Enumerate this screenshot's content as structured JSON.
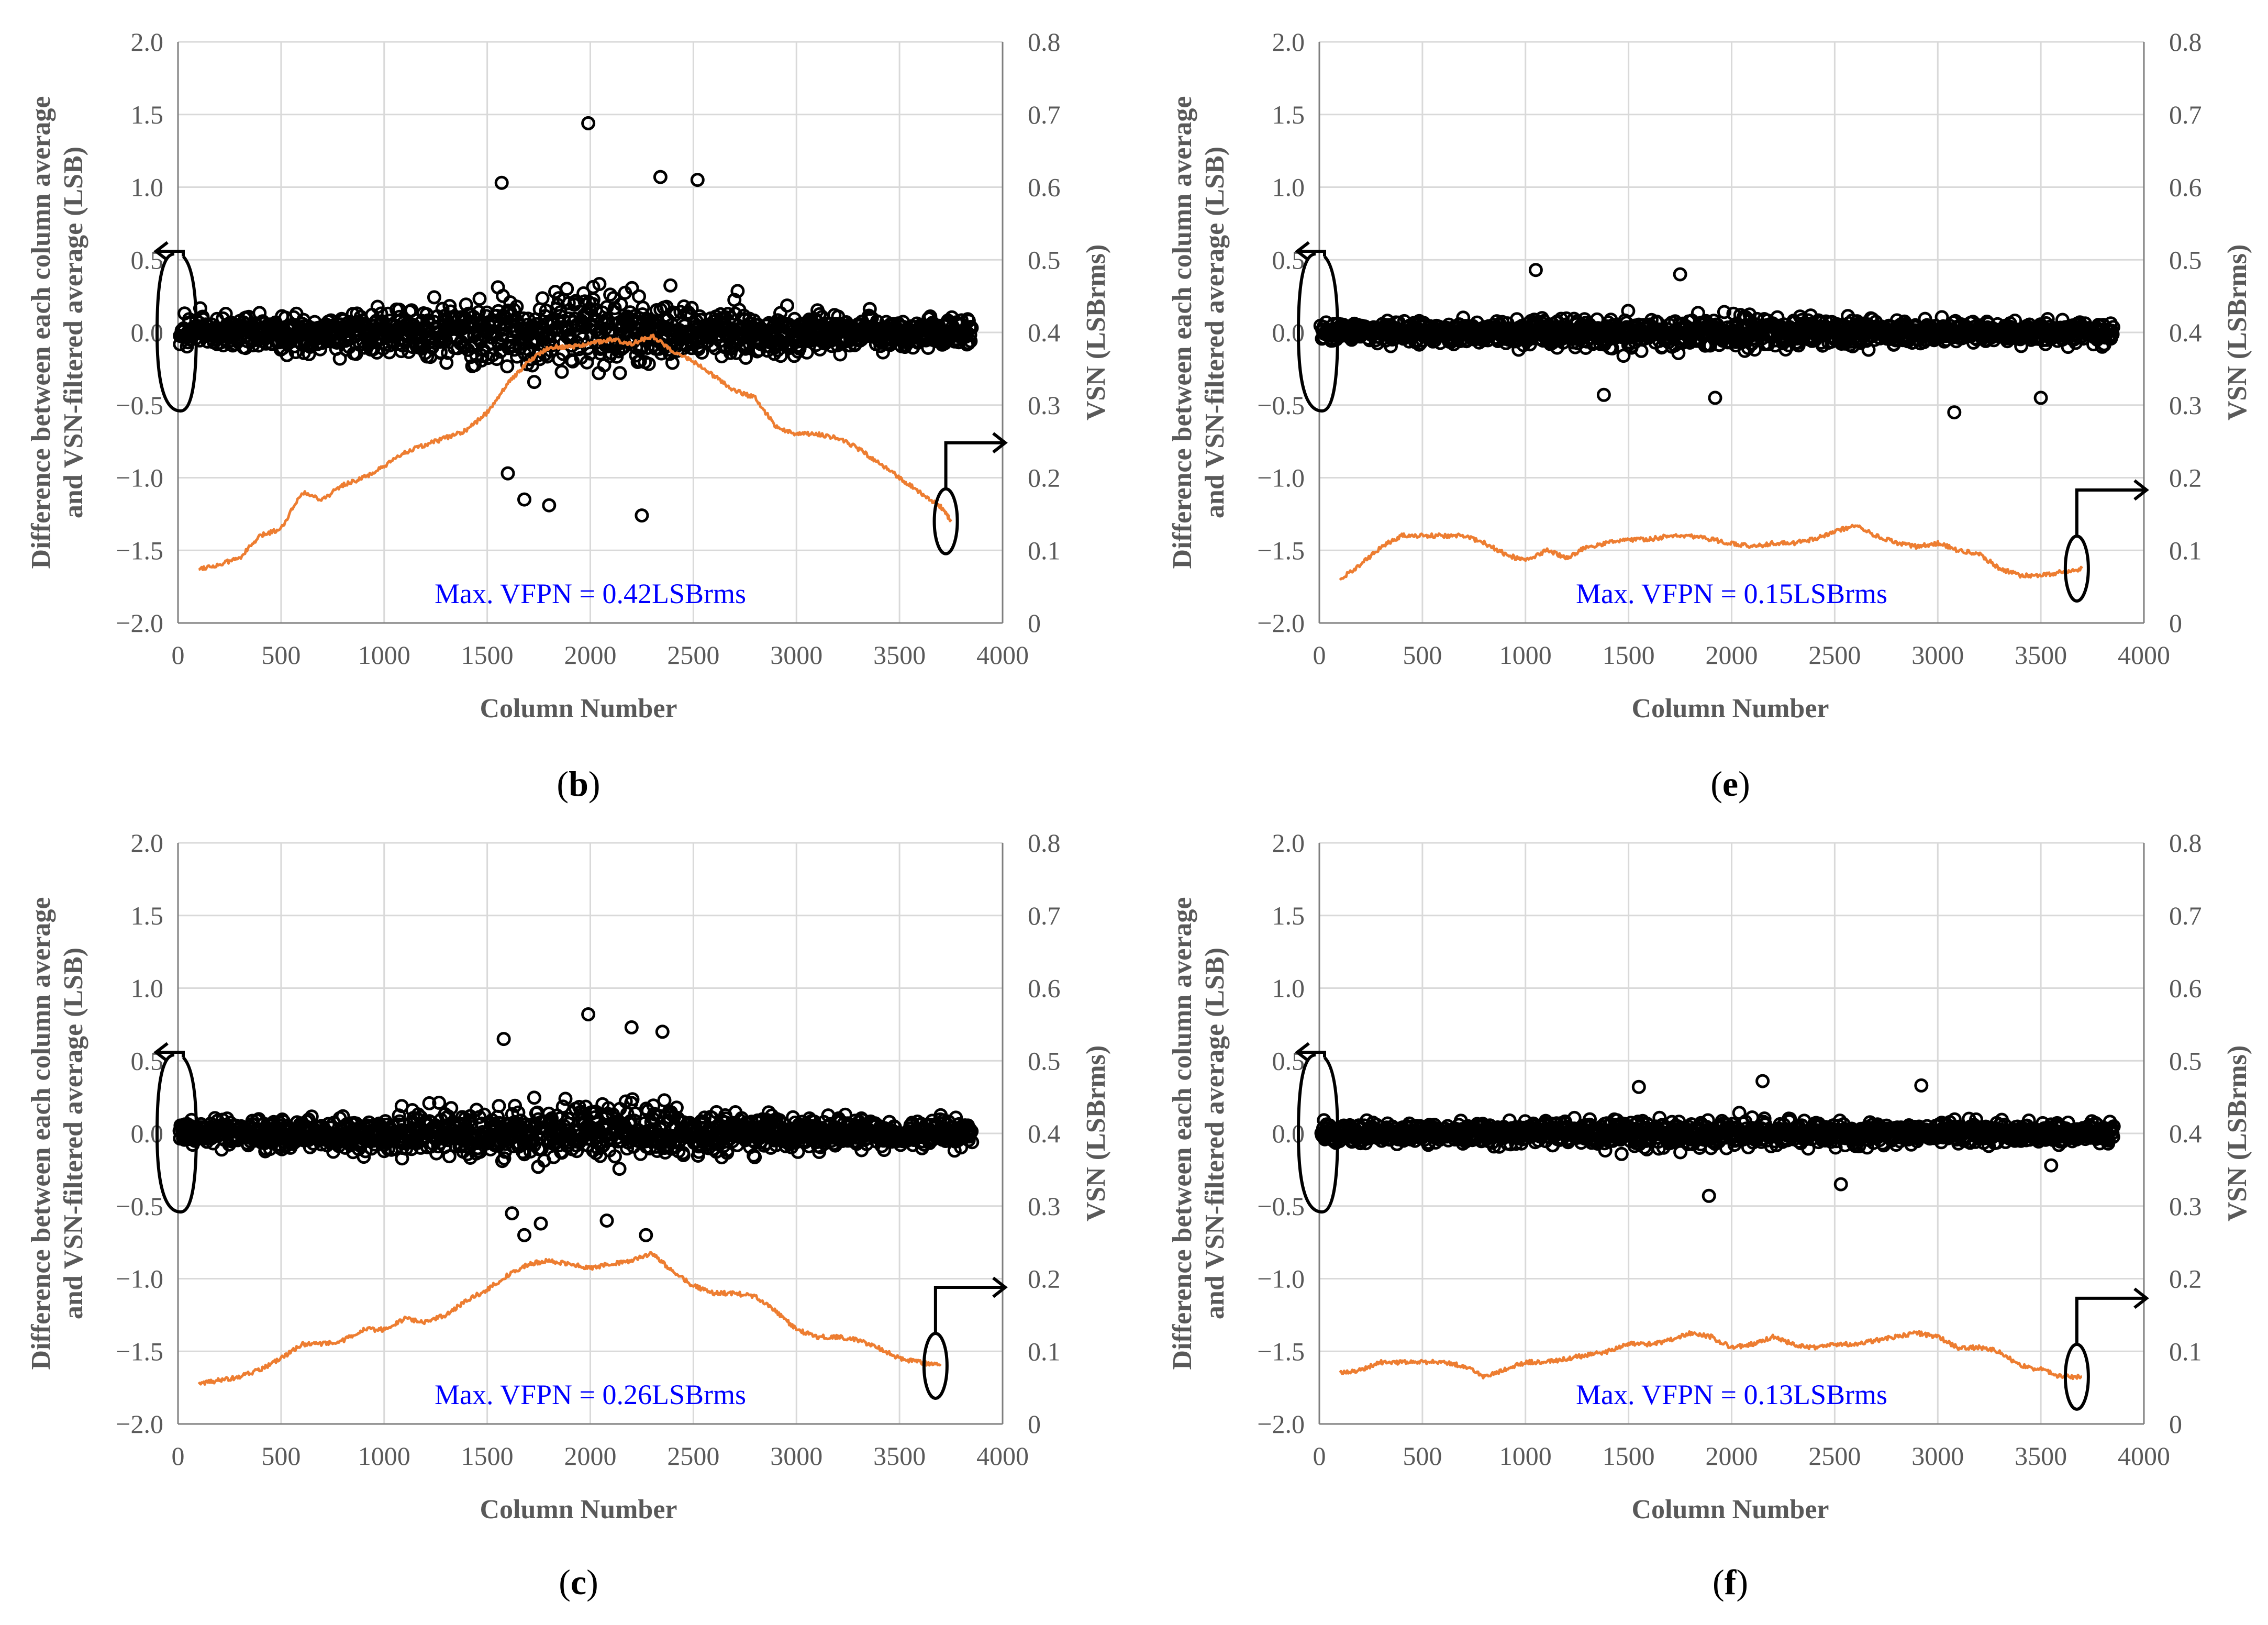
{
  "figure": {
    "xlabel": "Column Number",
    "ylabel_left_line1": "Difference between each column average",
    "ylabel_left_line2": "and VSN-filtered average (LSB)",
    "ylabel_right": "VSN (LSBrms)",
    "x_ticks": [
      "0",
      "500",
      "1000",
      "1500",
      "2000",
      "2500",
      "3000",
      "3500",
      "4000"
    ],
    "y_left_ticks": [
      "2.0",
      "1.5",
      "1.0",
      "0.5",
      "0.0",
      "−0.5",
      "−1.0",
      "−1.5",
      "−2.0"
    ],
    "y_right_ticks": [
      "0.8",
      "0.7",
      "0.6",
      "0.5",
      "0.4",
      "0.3",
      "0.2",
      "0.1",
      "0"
    ],
    "colors": {
      "scatter": "#000000",
      "line": "#ed7d31",
      "annotation": "#0000ff",
      "grid": "#d9d9d9",
      "axis": "#7f7f7f"
    }
  },
  "chart_data": [
    {
      "type": "scatter",
      "panel": "(b)",
      "panel_letter": "b",
      "annotation": "Max. VFPN = 0.42LSBrms",
      "title": "",
      "xlabel": "Column Number",
      "ylabel": "Difference between each column average and VSN-filtered average (LSB)",
      "y2label": "VSN (LSBrms)",
      "xlim": [
        0,
        4000
      ],
      "ylim": [
        -2.0,
        2.0
      ],
      "y2lim": [
        0,
        0.8
      ],
      "x_range": [
        0,
        3860
      ],
      "scatter_series": {
        "name": "Column average difference",
        "spread_edges": 0.15,
        "spread_center": 0.42,
        "peak_points": [
          [
            1570,
            1.03
          ],
          [
            1990,
            1.44
          ],
          [
            2340,
            1.07
          ],
          [
            2520,
            1.05
          ],
          [
            2250,
            -1.26
          ],
          [
            1800,
            -1.19
          ],
          [
            1680,
            -1.15
          ],
          [
            1600,
            -0.97
          ]
        ]
      },
      "line_series": {
        "name": "VSN",
        "points": [
          [
            100,
            0.075
          ],
          [
            200,
            0.08
          ],
          [
            300,
            0.09
          ],
          [
            400,
            0.12
          ],
          [
            500,
            0.13
          ],
          [
            600,
            0.18
          ],
          [
            700,
            0.17
          ],
          [
            800,
            0.19
          ],
          [
            900,
            0.2
          ],
          [
            1000,
            0.215
          ],
          [
            1100,
            0.235
          ],
          [
            1200,
            0.245
          ],
          [
            1300,
            0.255
          ],
          [
            1400,
            0.265
          ],
          [
            1500,
            0.29
          ],
          [
            1600,
            0.33
          ],
          [
            1700,
            0.36
          ],
          [
            1800,
            0.38
          ],
          [
            1900,
            0.38
          ],
          [
            2000,
            0.385
          ],
          [
            2100,
            0.39
          ],
          [
            2200,
            0.385
          ],
          [
            2300,
            0.395
          ],
          [
            2400,
            0.375
          ],
          [
            2500,
            0.36
          ],
          [
            2600,
            0.34
          ],
          [
            2700,
            0.32
          ],
          [
            2800,
            0.31
          ],
          [
            2900,
            0.27
          ],
          [
            3000,
            0.26
          ],
          [
            3100,
            0.26
          ],
          [
            3200,
            0.255
          ],
          [
            3300,
            0.24
          ],
          [
            3400,
            0.22
          ],
          [
            3500,
            0.2
          ],
          [
            3600,
            0.18
          ],
          [
            3700,
            0.16
          ],
          [
            3750,
            0.14
          ]
        ]
      }
    },
    {
      "type": "scatter",
      "panel": "(e)",
      "panel_letter": "e",
      "annotation": "Max. VFPN = 0.15LSBrms",
      "title": "",
      "xlabel": "Column Number",
      "ylabel": "Difference between each column average and VSN-filtered average (LSB)",
      "y2label": "VSN (LSBrms)",
      "xlim": [
        0,
        4000
      ],
      "ylim": [
        -2.0,
        2.0
      ],
      "y2lim": [
        0,
        0.8
      ],
      "x_range": [
        0,
        3860
      ],
      "scatter_series": {
        "name": "Column average difference",
        "spread_edges": 0.1,
        "spread_center": 0.17,
        "peak_points": [
          [
            1050,
            0.43
          ],
          [
            1750,
            0.4
          ],
          [
            3080,
            -0.55
          ],
          [
            3500,
            -0.45
          ],
          [
            1920,
            -0.45
          ],
          [
            1380,
            -0.43
          ]
        ]
      },
      "line_series": {
        "name": "VSN",
        "points": [
          [
            100,
            0.06
          ],
          [
            200,
            0.08
          ],
          [
            300,
            0.105
          ],
          [
            400,
            0.12
          ],
          [
            500,
            0.12
          ],
          [
            600,
            0.12
          ],
          [
            700,
            0.12
          ],
          [
            800,
            0.11
          ],
          [
            900,
            0.095
          ],
          [
            1000,
            0.085
          ],
          [
            1100,
            0.1
          ],
          [
            1200,
            0.09
          ],
          [
            1300,
            0.105
          ],
          [
            1400,
            0.11
          ],
          [
            1500,
            0.115
          ],
          [
            1600,
            0.115
          ],
          [
            1700,
            0.12
          ],
          [
            1800,
            0.12
          ],
          [
            1900,
            0.115
          ],
          [
            2000,
            0.11
          ],
          [
            2100,
            0.105
          ],
          [
            2200,
            0.11
          ],
          [
            2300,
            0.11
          ],
          [
            2400,
            0.115
          ],
          [
            2500,
            0.125
          ],
          [
            2600,
            0.135
          ],
          [
            2700,
            0.12
          ],
          [
            2800,
            0.11
          ],
          [
            2900,
            0.105
          ],
          [
            3000,
            0.11
          ],
          [
            3100,
            0.1
          ],
          [
            3200,
            0.095
          ],
          [
            3300,
            0.075
          ],
          [
            3400,
            0.065
          ],
          [
            3500,
            0.065
          ],
          [
            3600,
            0.07
          ],
          [
            3700,
            0.075
          ]
        ]
      }
    },
    {
      "type": "scatter",
      "panel": "(c)",
      "panel_letter": "c",
      "annotation": "Max. VFPN = 0.26LSBrms",
      "title": "",
      "xlabel": "Column Number",
      "ylabel": "Difference between each column average and VSN-filtered average (LSB)",
      "y2label": "VSN (LSBrms)",
      "xlim": [
        0,
        4000
      ],
      "ylim": [
        -2.0,
        2.0
      ],
      "y2lim": [
        0,
        0.8
      ],
      "x_range": [
        0,
        3860
      ],
      "scatter_series": {
        "name": "Column average difference",
        "spread_edges": 0.12,
        "spread_center": 0.3,
        "peak_points": [
          [
            1990,
            0.82
          ],
          [
            2200,
            0.73
          ],
          [
            2350,
            0.7
          ],
          [
            1580,
            0.65
          ],
          [
            1620,
            -0.55
          ],
          [
            1680,
            -0.7
          ],
          [
            1760,
            -0.62
          ],
          [
            2270,
            -0.7
          ],
          [
            2080,
            -0.6
          ]
        ]
      },
      "line_series": {
        "name": "VSN",
        "points": [
          [
            100,
            0.055
          ],
          [
            200,
            0.06
          ],
          [
            300,
            0.065
          ],
          [
            400,
            0.075
          ],
          [
            500,
            0.09
          ],
          [
            600,
            0.11
          ],
          [
            700,
            0.11
          ],
          [
            800,
            0.115
          ],
          [
            900,
            0.13
          ],
          [
            1000,
            0.13
          ],
          [
            1100,
            0.145
          ],
          [
            1200,
            0.14
          ],
          [
            1300,
            0.15
          ],
          [
            1400,
            0.17
          ],
          [
            1500,
            0.185
          ],
          [
            1600,
            0.205
          ],
          [
            1700,
            0.22
          ],
          [
            1800,
            0.225
          ],
          [
            1900,
            0.22
          ],
          [
            2000,
            0.215
          ],
          [
            2100,
            0.22
          ],
          [
            2200,
            0.225
          ],
          [
            2300,
            0.235
          ],
          [
            2400,
            0.21
          ],
          [
            2500,
            0.19
          ],
          [
            2600,
            0.18
          ],
          [
            2700,
            0.18
          ],
          [
            2800,
            0.175
          ],
          [
            2900,
            0.155
          ],
          [
            3000,
            0.13
          ],
          [
            3100,
            0.12
          ],
          [
            3200,
            0.12
          ],
          [
            3300,
            0.115
          ],
          [
            3400,
            0.105
          ],
          [
            3500,
            0.09
          ],
          [
            3600,
            0.085
          ],
          [
            3700,
            0.08
          ]
        ]
      }
    },
    {
      "type": "scatter",
      "panel": "(f)",
      "panel_letter": "f",
      "annotation": "Max. VFPN = 0.13LSBrms",
      "title": "",
      "xlabel": "Column Number",
      "ylabel": "Difference between each column average and VSN-filtered average (LSB)",
      "y2label": "VSN (LSBrms)",
      "xlim": [
        0,
        4000
      ],
      "ylim": [
        -2.0,
        2.0
      ],
      "y2lim": [
        0,
        0.8
      ],
      "x_range": [
        0,
        3860
      ],
      "scatter_series": {
        "name": "Column average difference",
        "spread_edges": 0.1,
        "spread_center": 0.14,
        "peak_points": [
          [
            2150,
            0.36
          ],
          [
            2920,
            0.33
          ],
          [
            1550,
            0.32
          ],
          [
            1890,
            -0.43
          ],
          [
            2530,
            -0.35
          ],
          [
            3550,
            -0.22
          ]
        ]
      },
      "line_series": {
        "name": "VSN",
        "points": [
          [
            100,
            0.07
          ],
          [
            200,
            0.075
          ],
          [
            300,
            0.085
          ],
          [
            400,
            0.085
          ],
          [
            500,
            0.085
          ],
          [
            600,
            0.085
          ],
          [
            700,
            0.08
          ],
          [
            800,
            0.065
          ],
          [
            900,
            0.075
          ],
          [
            1000,
            0.085
          ],
          [
            1100,
            0.085
          ],
          [
            1200,
            0.09
          ],
          [
            1300,
            0.095
          ],
          [
            1400,
            0.1
          ],
          [
            1500,
            0.11
          ],
          [
            1600,
            0.11
          ],
          [
            1700,
            0.115
          ],
          [
            1800,
            0.125
          ],
          [
            1900,
            0.12
          ],
          [
            2000,
            0.105
          ],
          [
            2100,
            0.11
          ],
          [
            2200,
            0.12
          ],
          [
            2300,
            0.11
          ],
          [
            2400,
            0.105
          ],
          [
            2500,
            0.11
          ],
          [
            2600,
            0.11
          ],
          [
            2700,
            0.115
          ],
          [
            2800,
            0.12
          ],
          [
            2900,
            0.125
          ],
          [
            3000,
            0.12
          ],
          [
            3100,
            0.105
          ],
          [
            3200,
            0.105
          ],
          [
            3300,
            0.1
          ],
          [
            3400,
            0.08
          ],
          [
            3500,
            0.075
          ],
          [
            3600,
            0.065
          ],
          [
            3700,
            0.065
          ]
        ]
      }
    }
  ]
}
